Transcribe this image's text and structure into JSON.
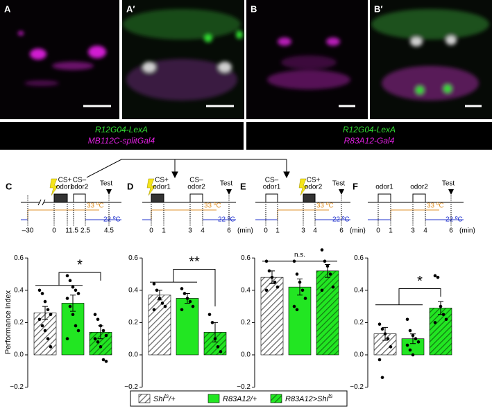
{
  "figure_panels": [
    {
      "label": "A"
    },
    {
      "label": "A′"
    },
    {
      "label": "B"
    },
    {
      "label": "B′"
    }
  ],
  "genotype_labels": [
    {
      "lines": [
        "R12G04-LexA",
        "MB112C-splitGal4"
      ]
    },
    {
      "lines": [
        "R12G04-LexA",
        "R83A12-Gal4"
      ]
    }
  ],
  "protocols": [
    {
      "label": "C",
      "odors": [
        {
          "cs": "CS+",
          "name": "odor1"
        },
        {
          "cs": "CS–",
          "name": "odor2"
        }
      ],
      "test": "Test",
      "high": "33 ºC",
      "low": "22 ºC",
      "times": [
        "–30",
        "0",
        "1",
        "1.5",
        "2.5",
        "4.5"
      ]
    },
    {
      "label": "D",
      "odors": [
        {
          "cs": "CS+",
          "name": "odor1"
        },
        {
          "cs": "CS–",
          "name": "odor2"
        }
      ],
      "test": "Test",
      "high": "33 ºC",
      "low": "22 ºC",
      "times": [
        "0",
        "1",
        "3",
        "4",
        "6"
      ],
      "unit": "(min)"
    },
    {
      "label": "E",
      "odors": [
        {
          "cs": "CS–",
          "name": "odor1"
        },
        {
          "cs": "CS+",
          "name": "odor2"
        }
      ],
      "test": "Test",
      "high": "33 ºC",
      "low": "22 ºC",
      "times": [
        "0",
        "1",
        "3",
        "4",
        "6"
      ],
      "unit": "(min)"
    },
    {
      "label": "F",
      "odors": [
        {
          "name": "odor1"
        },
        {
          "name": "odor2"
        }
      ],
      "test": "Test",
      "high": "33 ºC",
      "low": "22 ºC",
      "times": [
        "0",
        "1",
        "3",
        "4",
        "6"
      ],
      "unit": "(min)"
    }
  ],
  "legend": [
    {
      "parts": [
        "Shi",
        "ts",
        "/+"
      ],
      "color": "#ffffff",
      "hatch": true
    },
    {
      "parts": [
        "R83A12/+"
      ],
      "color": "#22e622",
      "hatch": false
    },
    {
      "parts": [
        "R83A12>Shi",
        "ts"
      ],
      "color": "#22e622",
      "hatch": true
    }
  ],
  "chart_data": [
    {
      "type": "bar",
      "y_label": "Performance index",
      "values": [
        0.26,
        0.32,
        0.14
      ],
      "errors": [
        0.04,
        0.05,
        0.04
      ],
      "points": [
        [
          0.4,
          0.38,
          0.33,
          0.28,
          0.25,
          0.22,
          0.18,
          0.15,
          0.1,
          0.05
        ],
        [
          0.49,
          0.46,
          0.42,
          0.4,
          0.38,
          0.35,
          0.3,
          0.25,
          0.18,
          0.15,
          0.1
        ],
        [
          0.25,
          0.22,
          0.18,
          0.15,
          0.12,
          0.1,
          0.08,
          0.05,
          -0.03,
          -0.04
        ]
      ],
      "significance": "*",
      "ylim": [
        -0.2,
        0.6
      ],
      "yticks": [
        {
          "value": -0.2,
          "label": "−0.2"
        },
        {
          "value": 0,
          "label": "0.0"
        },
        0.2,
        0.4,
        0.6
      ]
    },
    {
      "type": "bar",
      "values": [
        0.37,
        0.35,
        0.14
      ],
      "errors": [
        0.03,
        0.03,
        0.06
      ],
      "points": [
        [
          0.44,
          0.4,
          0.35,
          0.32,
          0.3,
          0.28
        ],
        [
          0.41,
          0.38,
          0.35,
          0.33,
          0.3,
          0.28
        ],
        [
          0.25,
          0.2,
          0.1,
          0.05,
          0.02
        ]
      ],
      "significance": "**",
      "ylim": [
        -0.2,
        0.6
      ],
      "yticks": [
        {
          "value": -0.2,
          "label": "−0.2"
        },
        {
          "value": 0,
          "label": "0.0"
        },
        0.2,
        0.4,
        0.6
      ]
    },
    {
      "type": "bar",
      "values": [
        0.48,
        0.42,
        0.52
      ],
      "errors": [
        0.04,
        0.05,
        0.04
      ],
      "points": [
        [
          0.58,
          0.52,
          0.48,
          0.45,
          0.42,
          0.4
        ],
        [
          0.58,
          0.5,
          0.45,
          0.4,
          0.35,
          0.3,
          0.28
        ],
        [
          0.65,
          0.58,
          0.55,
          0.5,
          0.42,
          0.4
        ]
      ],
      "significance": "n.s.",
      "ylim": [
        -0.2,
        0.6
      ],
      "yticks": [
        {
          "value": -0.2,
          "label": "−0.2"
        },
        {
          "value": 0,
          "label": "0.0"
        },
        0.2,
        0.4,
        0.6
      ]
    },
    {
      "type": "bar",
      "values": [
        0.13,
        0.1,
        0.29
      ],
      "errors": [
        0.04,
        0.03,
        0.04
      ],
      "points": [
        [
          0.19,
          0.16,
          0.13,
          0.1,
          0.05,
          -0.03,
          -0.14
        ],
        [
          0.22,
          0.15,
          0.12,
          0.1,
          0.08,
          0.06,
          0.03,
          0.0
        ],
        [
          0.49,
          0.48,
          0.3,
          0.25,
          0.22,
          0.2
        ]
      ],
      "significance": "*",
      "ylim": [
        -0.2,
        0.6
      ],
      "yticks": [
        {
          "value": -0.2,
          "label": "−0.2"
        },
        {
          "value": 0,
          "label": "0.0"
        },
        0.2,
        0.4,
        0.6
      ]
    }
  ]
}
